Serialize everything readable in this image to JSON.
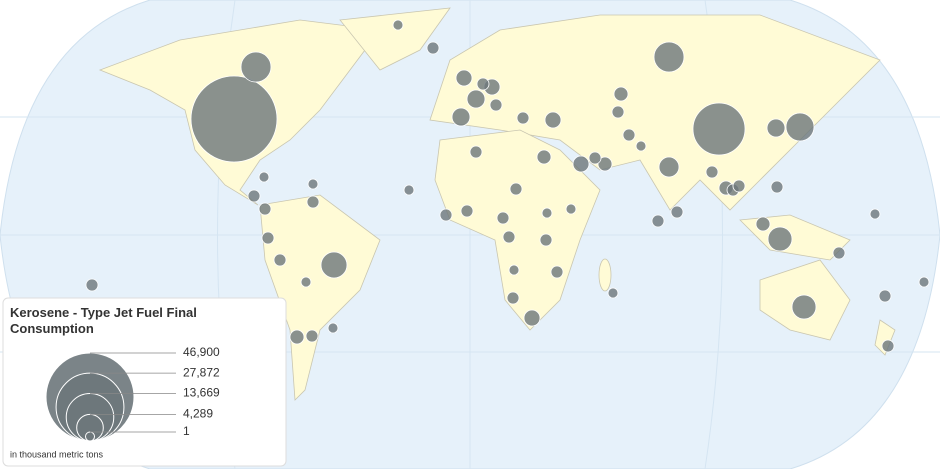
{
  "chart_data": {
    "type": "bubble-map",
    "title": "Kerosene - Type Jet Fuel Final Consumption",
    "size_label": "in thousand metric tons",
    "color": "#6d777b",
    "size_ticks": [
      {
        "value": 46900,
        "label": "46,900"
      },
      {
        "value": 27872,
        "label": "27,872"
      },
      {
        "value": 13669,
        "label": "13,669"
      },
      {
        "value": 4289,
        "label": "4,289"
      },
      1
    ],
    "values": [
      44800,
      5450,
      16400,
      5450,
      4750,
      1960,
      2420,
      4090,
      3490,
      3490,
      1190,
      1550,
      1190,
      870,
      1190,
      870,
      870,
      870,
      870,
      1550,
      1960,
      1550,
      1960,
      870,
      870,
      1550,
      870,
      1190,
      1550,
      870,
      1190,
      870,
      870,
      870,
      870,
      870,
      600,
      600,
      1190,
      870,
      870,
      870,
      870,
      600,
      600,
      870,
      600,
      870,
      870,
      600,
      600,
      870,
      870,
      600,
      870,
      870,
      870,
      870,
      870,
      600,
      870,
      870,
      600,
      600,
      870,
      600,
      870,
      600
    ]
  }
}
